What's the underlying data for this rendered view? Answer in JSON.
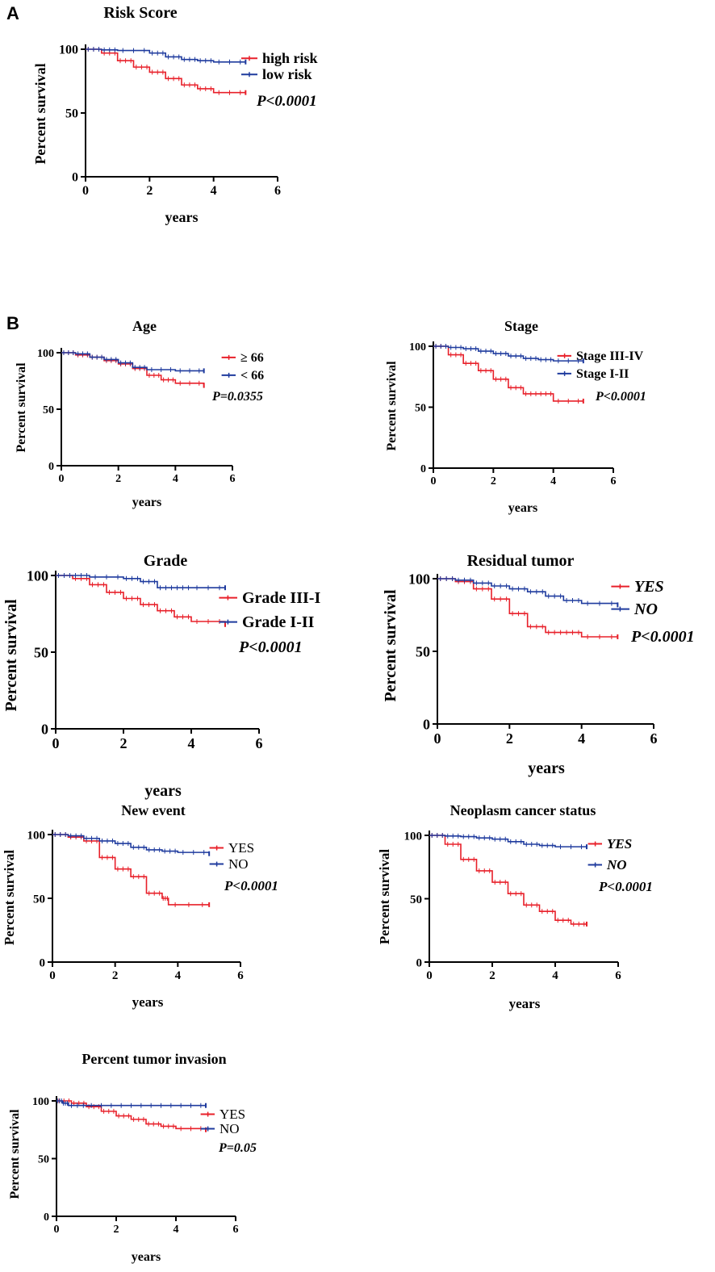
{
  "panel_labels": [
    "A",
    "B"
  ],
  "colors": {
    "high": "#e8202a",
    "low": "#1f3b9e",
    "axis": "#000000"
  },
  "chart_data": [
    {
      "type": "line",
      "title": "Risk Score",
      "xlabel": "years",
      "ylabel": "Percent survival",
      "xlim": [
        0,
        6
      ],
      "ylim": [
        0,
        100
      ],
      "xticks": [
        "0",
        "2",
        "4",
        "6"
      ],
      "yticks": [
        "0",
        "50",
        "100"
      ],
      "series": [
        {
          "name": "high risk",
          "x": [
            0,
            0.5,
            1,
            1.5,
            2,
            2.5,
            3,
            3.5,
            4,
            5
          ],
          "y": [
            100,
            97,
            91,
            86,
            82,
            77,
            72,
            69,
            66,
            66
          ]
        },
        {
          "name": "low risk",
          "x": [
            0,
            0.5,
            1,
            2,
            2.5,
            3,
            3.5,
            4,
            5
          ],
          "y": [
            100,
            99.5,
            99,
            97,
            94,
            92,
            91,
            90,
            90
          ]
        }
      ],
      "pvalue": "P<0.0001"
    },
    {
      "type": "line",
      "title": "Age",
      "xlabel": "years",
      "ylabel": "Percent survival",
      "xlim": [
        0,
        6
      ],
      "ylim": [
        0,
        100
      ],
      "xticks": [
        "0",
        "2",
        "4",
        "6"
      ],
      "yticks": [
        "0",
        "50",
        "100"
      ],
      "series": [
        {
          "name": "≥ 66",
          "x": [
            0,
            0.5,
            1,
            1.5,
            2,
            2.5,
            3,
            3.5,
            4,
            5
          ],
          "y": [
            100,
            98,
            96,
            93,
            90,
            86,
            80,
            76,
            73,
            71
          ]
        },
        {
          "name": "< 66",
          "x": [
            0,
            0.5,
            1,
            1.5,
            2,
            2.5,
            3,
            4,
            5
          ],
          "y": [
            100,
            99,
            96,
            94,
            91,
            87,
            85,
            84,
            84
          ]
        }
      ],
      "pvalue": "P=0.0355"
    },
    {
      "type": "line",
      "title": "Stage",
      "xlabel": "years",
      "ylabel": "Percent survival",
      "xlim": [
        0,
        6
      ],
      "ylim": [
        0,
        100
      ],
      "xticks": [
        "0",
        "2",
        "4",
        "6"
      ],
      "yticks": [
        "0",
        "50",
        "100"
      ],
      "series": [
        {
          "name": "Stage III-IV",
          "x": [
            0,
            0.5,
            1,
            1.5,
            2,
            2.5,
            3,
            3.5,
            4,
            5
          ],
          "y": [
            100,
            93,
            86,
            80,
            73,
            66,
            61,
            61,
            55,
            55
          ]
        },
        {
          "name": "Stage I-II",
          "x": [
            0,
            0.5,
            1,
            1.5,
            2,
            2.5,
            3,
            3.5,
            4,
            5
          ],
          "y": [
            100,
            99,
            98,
            96,
            94,
            92,
            90,
            89,
            88,
            88
          ]
        }
      ],
      "pvalue": "P<0.0001"
    },
    {
      "type": "line",
      "title": "Grade",
      "xlabel": "years",
      "ylabel": "Percent survival",
      "xlim": [
        0,
        6
      ],
      "ylim": [
        0,
        100
      ],
      "xticks": [
        "0",
        "2",
        "4",
        "6"
      ],
      "yticks": [
        "0",
        "50",
        "100"
      ],
      "series": [
        {
          "name": "Grade III-I",
          "x": [
            0,
            0.5,
            1,
            1.5,
            2,
            2.5,
            3,
            3.5,
            4,
            5
          ],
          "y": [
            100,
            98,
            94,
            89,
            85,
            81,
            77,
            73,
            70,
            68
          ]
        },
        {
          "name": "Grade I-II",
          "x": [
            0,
            0.5,
            1,
            2,
            2.5,
            3,
            3.5,
            4,
            5
          ],
          "y": [
            100,
            100,
            99,
            98,
            96,
            92,
            92,
            92,
            92
          ]
        }
      ],
      "pvalue": "P<0.0001"
    },
    {
      "type": "line",
      "title": "Residual tumor",
      "xlabel": "years",
      "ylabel": "Percent survival",
      "xlim": [
        0,
        6
      ],
      "ylim": [
        0,
        100
      ],
      "xticks": [
        "0",
        "2",
        "4",
        "6"
      ],
      "yticks": [
        "0",
        "50",
        "100"
      ],
      "series": [
        {
          "name": "YES",
          "x": [
            0,
            0.5,
            1,
            1.5,
            2,
            2.5,
            3,
            3.5,
            4,
            5
          ],
          "y": [
            100,
            98,
            93,
            86,
            76,
            67,
            63,
            63,
            60,
            60
          ]
        },
        {
          "name": "NO",
          "x": [
            0,
            0.5,
            1,
            1.5,
            2,
            2.5,
            3,
            3.5,
            4,
            5
          ],
          "y": [
            100,
            99,
            97,
            95,
            93,
            91,
            88,
            85,
            83,
            82
          ]
        }
      ],
      "pvalue": "P<0.0001"
    },
    {
      "type": "line",
      "title": "New event",
      "xlabel": "years",
      "ylabel": "Percent survival",
      "xlim": [
        0,
        6
      ],
      "ylim": [
        0,
        100
      ],
      "xticks": [
        "0",
        "2",
        "4",
        "6"
      ],
      "yticks": [
        "0",
        "50",
        "100"
      ],
      "series": [
        {
          "name": "YES",
          "x": [
            0,
            0.5,
            1,
            1.5,
            2,
            2.5,
            3,
            3.5,
            3.7,
            5
          ],
          "y": [
            100,
            98,
            95,
            82,
            73,
            67,
            54,
            50,
            45,
            45
          ]
        },
        {
          "name": "NO",
          "x": [
            0,
            0.5,
            1,
            1.5,
            2,
            2.5,
            3,
            3.5,
            4,
            5
          ],
          "y": [
            100,
            99,
            97,
            95,
            93,
            90,
            88,
            87,
            86,
            85
          ]
        }
      ],
      "pvalue": "P<0.0001"
    },
    {
      "type": "line",
      "title": "Neoplasm cancer status",
      "xlabel": "years",
      "ylabel": "Percent survival",
      "xlim": [
        0,
        6
      ],
      "ylim": [
        0,
        100
      ],
      "xticks": [
        "0",
        "2",
        "4",
        "6"
      ],
      "yticks": [
        "0",
        "50",
        "100"
      ],
      "series": [
        {
          "name": "YES",
          "x": [
            0,
            0.5,
            1,
            1.5,
            2,
            2.5,
            3,
            3.5,
            4,
            4.5,
            5
          ],
          "y": [
            100,
            93,
            81,
            72,
            63,
            54,
            45,
            40,
            33,
            30,
            30
          ]
        },
        {
          "name": "NO",
          "x": [
            0,
            0.5,
            1,
            1.5,
            2,
            2.5,
            3,
            3.5,
            4,
            5
          ],
          "y": [
            100,
            99.5,
            99,
            98,
            97,
            95,
            93,
            92,
            91,
            91
          ]
        }
      ],
      "pvalue": "P<0.0001"
    },
    {
      "type": "line",
      "title": "Percent tumor invasion",
      "xlabel": "years",
      "ylabel": "Percent survival",
      "xlim": [
        0,
        6
      ],
      "ylim": [
        0,
        100
      ],
      "xticks": [
        "0",
        "2",
        "4",
        "6"
      ],
      "yticks": [
        "0",
        "50",
        "100"
      ],
      "series": [
        {
          "name": "YES",
          "x": [
            0,
            0.5,
            1,
            1.5,
            2,
            2.5,
            3,
            3.5,
            4,
            5
          ],
          "y": [
            100,
            98,
            95,
            91,
            87,
            84,
            80,
            78,
            76,
            75
          ]
        },
        {
          "name": "NO",
          "x": [
            0,
            0.2,
            0.4,
            1,
            2,
            3,
            4,
            5
          ],
          "y": [
            100,
            98,
            96,
            96,
            96,
            96,
            96,
            96
          ]
        }
      ],
      "pvalue": "P=0.05"
    }
  ]
}
